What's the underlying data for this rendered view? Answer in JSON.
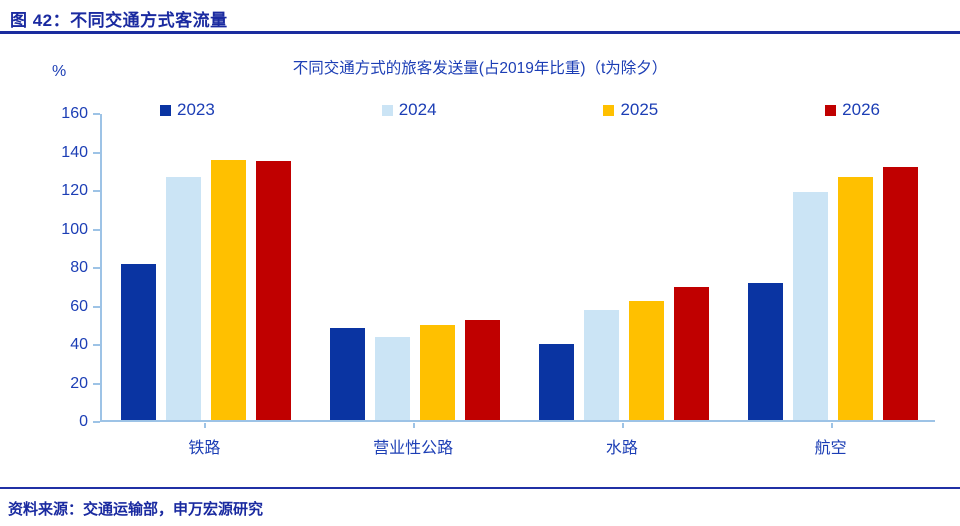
{
  "header": {
    "title": "图 42：不同交通方式客流量"
  },
  "footer": {
    "source": "资料来源：交通运输部，申万宏源研究"
  },
  "chart_data": {
    "type": "bar",
    "title": "不同交通方式的旅客发送量(占2019年比重)（t为除夕）",
    "unit_label": "%",
    "categories": [
      "铁路",
      "营业性公路",
      "水路",
      "航空"
    ],
    "series": [
      {
        "name": "2023",
        "color": "#0A34A2",
        "values": [
          81,
          48,
          39.5,
          71
        ]
      },
      {
        "name": "2024",
        "color": "#CBE4F5",
        "values": [
          126.5,
          43,
          57,
          118.5
        ]
      },
      {
        "name": "2025",
        "color": "#FFC000",
        "values": [
          135,
          49.5,
          62,
          126.5
        ]
      },
      {
        "name": "2026",
        "color": "#C00000",
        "values": [
          134.5,
          52,
          69,
          131.5
        ]
      }
    ],
    "ylim": [
      0,
      160
    ],
    "ytick_step": 20,
    "grid": false,
    "legend_position": "top"
  },
  "colors": {
    "accent_text": "#1C3EB5",
    "header_text": "#1A2AA0",
    "axis_line": "#9DC3E6",
    "rule": "#1A2C9E"
  }
}
